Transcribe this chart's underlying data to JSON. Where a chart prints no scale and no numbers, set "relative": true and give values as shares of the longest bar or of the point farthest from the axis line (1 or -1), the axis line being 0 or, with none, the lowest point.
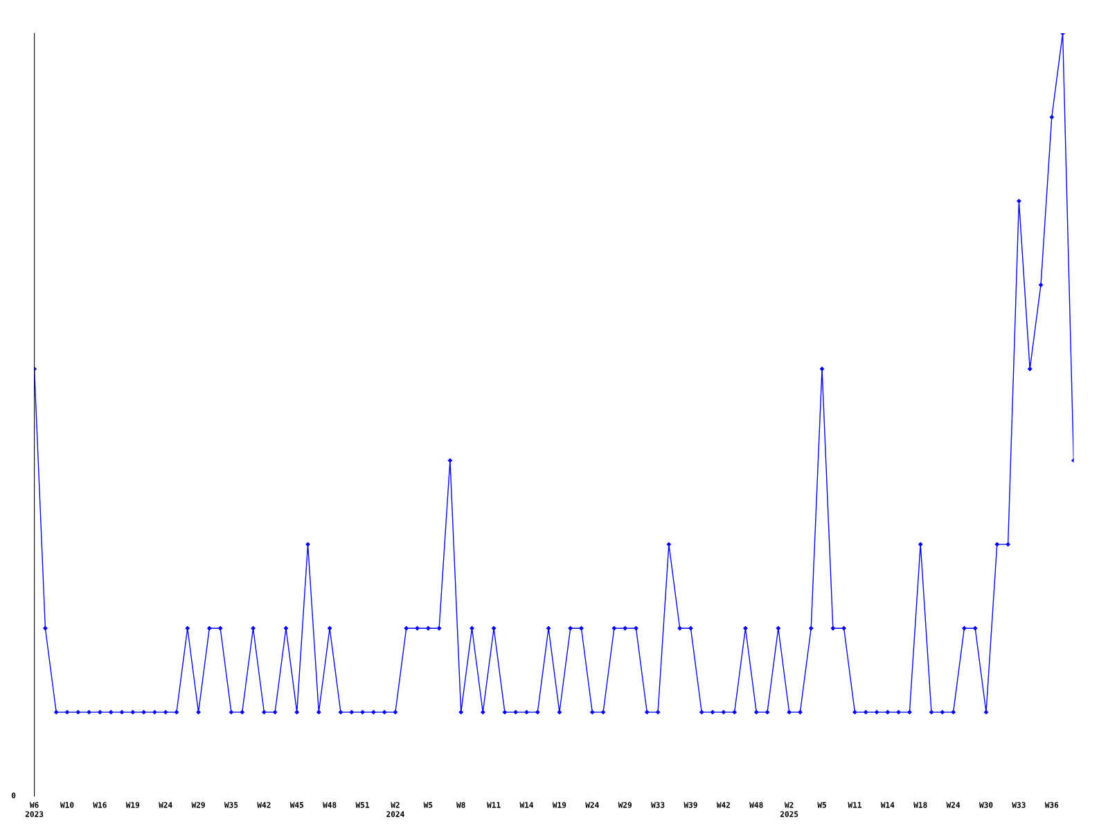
{
  "chart_data": {
    "type": "line",
    "relative": true,
    "categories": [
      "W6\n2023",
      null,
      null,
      "W10",
      null,
      null,
      "W16",
      null,
      null,
      "W19",
      null,
      null,
      "W24",
      null,
      null,
      "W29",
      null,
      null,
      "W35",
      null,
      null,
      "W42",
      null,
      null,
      "W45",
      null,
      null,
      "W48",
      null,
      null,
      "W51",
      null,
      null,
      "W2\n2024",
      null,
      null,
      "W5",
      null,
      null,
      "W8",
      null,
      null,
      "W11",
      null,
      null,
      "W14",
      null,
      null,
      "W19",
      null,
      null,
      "W24",
      null,
      null,
      "W29",
      null,
      null,
      "W33",
      null,
      null,
      "W39",
      null,
      null,
      "W42",
      null,
      null,
      "W48",
      null,
      null,
      "W2\n2025",
      null,
      null,
      "W5",
      null,
      null,
      "W11",
      null,
      null,
      "W14",
      null,
      null,
      "W18",
      null,
      null,
      "W24",
      null,
      null,
      "W30",
      null,
      null,
      "W33",
      null,
      null,
      "W36",
      null,
      null
    ],
    "series": [
      {
        "color": "#0000ff",
        "values": [
          0.56,
          0.22,
          0.11,
          0.11,
          0.11,
          0.11,
          0.11,
          0.11,
          0.11,
          0.11,
          0.11,
          0.11,
          0.11,
          0.11,
          0.22,
          0.11,
          0.22,
          0.22,
          0.11,
          0.11,
          0.22,
          0.11,
          0.11,
          0.22,
          0.11,
          0.33,
          0.11,
          0.22,
          0.11,
          0.11,
          0.11,
          0.11,
          0.11,
          0.11,
          0.22,
          0.22,
          0.22,
          0.22,
          0.44,
          0.11,
          0.22,
          0.11,
          0.22,
          0.11,
          0.11,
          0.11,
          0.11,
          0.22,
          0.11,
          0.22,
          0.22,
          0.11,
          0.11,
          0.22,
          0.22,
          0.22,
          0.11,
          0.11,
          0.33,
          0.22,
          0.22,
          0.11,
          0.11,
          0.11,
          0.11,
          0.22,
          0.11,
          0.11,
          0.22,
          0.11,
          0.11,
          0.22,
          0.56,
          0.22,
          0.22,
          0.11,
          0.11,
          0.11,
          0.11,
          0.11,
          0.11,
          0.33,
          0.11,
          0.11,
          0.11,
          0.22,
          0.22,
          0.11,
          0.33,
          0.33,
          0.78,
          0.56,
          0.67,
          0.89,
          1,
          0.44
        ]
      }
    ],
    "annotations": [
      "0"
    ],
    "marker": "diamond",
    "line_style": "solid",
    "grid": false,
    "legend": false
  }
}
